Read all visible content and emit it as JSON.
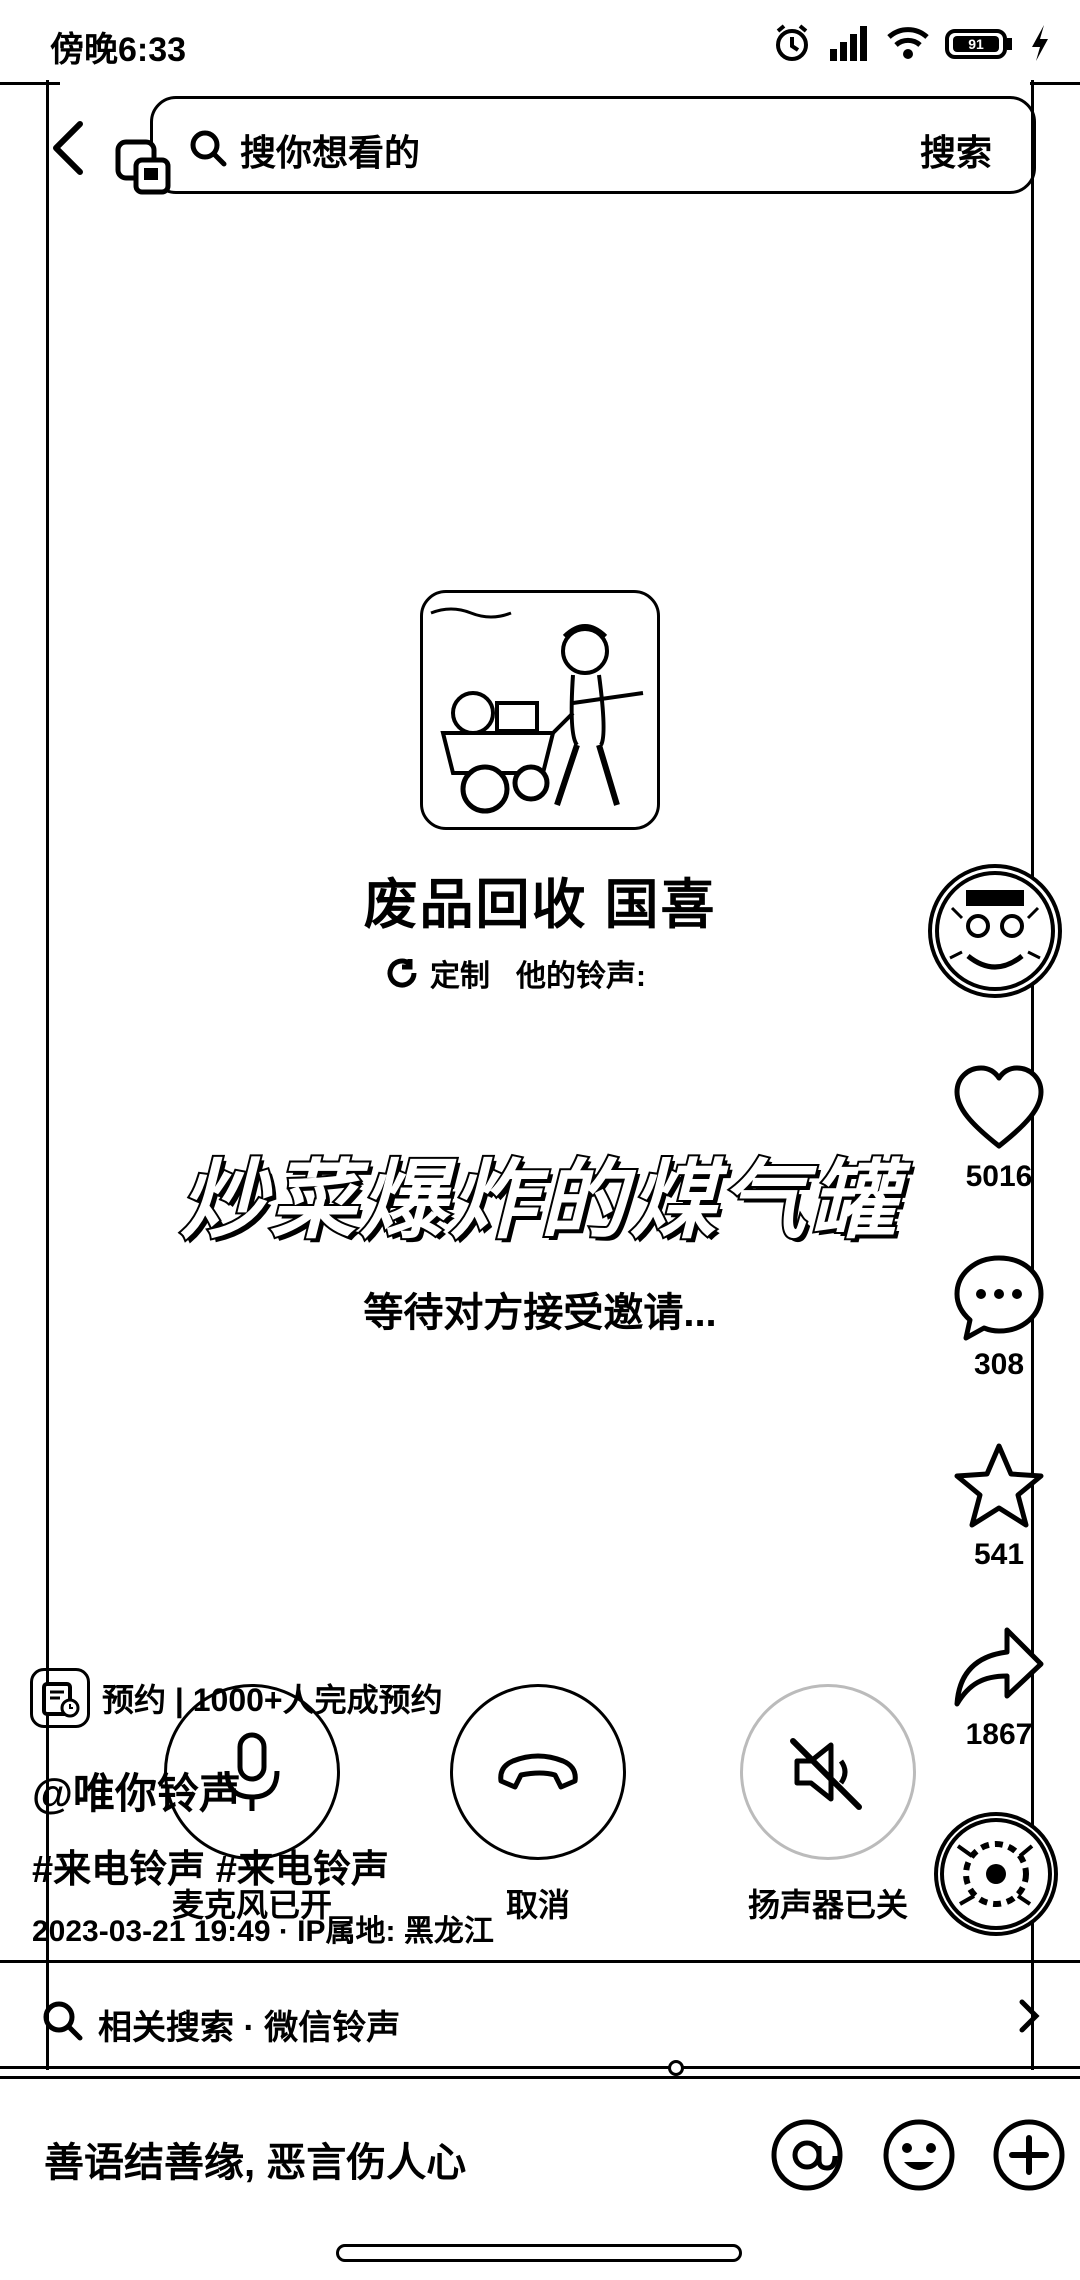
{
  "status_bar": {
    "time": "傍晚6:33",
    "icons": [
      "alarm-icon",
      "signal-icon",
      "wifi-icon",
      "battery-icon",
      "charging-icon"
    ],
    "battery": "91"
  },
  "search": {
    "placeholder": "搜你想看的",
    "button_label": "搜索"
  },
  "caller": {
    "name": "废品回收 国喜",
    "ringtone_tag": {
      "custom_label": "定制",
      "text": "他的铃声:"
    },
    "song_title": "炒菜爆炸的煤气罐",
    "status_text": "等待对方接受邀请..."
  },
  "actions": {
    "like_count": "5016",
    "comment_count": "308",
    "favorite_count": "541",
    "share_count": "1867"
  },
  "call_controls": {
    "mic_label": "麦克风已开",
    "hangup_label": "取消",
    "speaker_label": "扬声器已关"
  },
  "post": {
    "booking_text": "预约 | 1000+人完成预约",
    "author": "@唯你铃声",
    "hashtags": "#来电铃声 #来电铃声",
    "meta": "2023-03-21 19:49 · IP属地: 黑龙江"
  },
  "related_search": {
    "text": "相关搜索 · 微信铃声"
  },
  "comment_bar": {
    "placeholder": "善语结善缘, 恶言伤人心",
    "icons": [
      "mention-icon",
      "emoji-icon",
      "add-icon"
    ]
  },
  "colors": {
    "foreground": "#000000",
    "background": "#ffffff"
  }
}
